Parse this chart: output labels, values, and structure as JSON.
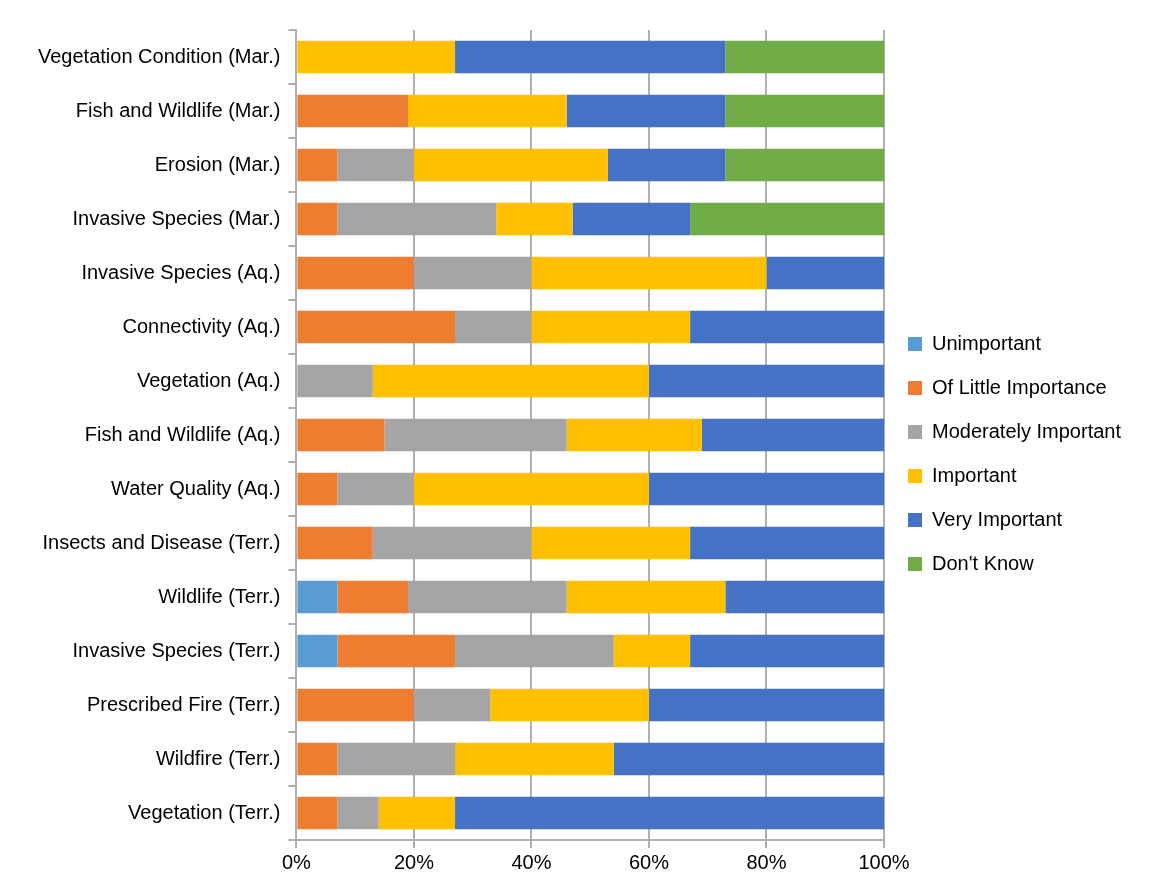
{
  "chart_data": {
    "type": "bar",
    "orientation": "horizontal",
    "stacked": true,
    "categories": [
      "Vegetation Condition (Mar.)",
      "Fish and Wildlife (Mar.)",
      "Erosion (Mar.)",
      "Invasive Species (Mar.)",
      "Invasive Species (Aq.)",
      "Connectivity (Aq.)",
      "Vegetation (Aq.)",
      "Fish and Wildlife (Aq.)",
      "Water Quality (Aq.)",
      "Insects and Disease (Terr.)",
      "Wildlife (Terr.)",
      "Invasive Species (Terr.)",
      "Prescribed Fire (Terr.)",
      "Wildfire (Terr.)",
      "Vegetation (Terr.)"
    ],
    "series": [
      {
        "name": "Unimportant",
        "color": "#5b9bd5",
        "values": [
          0,
          0,
          0,
          0,
          0,
          0,
          0,
          0,
          0,
          0,
          7,
          7,
          0,
          0,
          0
        ]
      },
      {
        "name": "Of Little Importance",
        "color": "#ed7d31",
        "values": [
          0,
          19,
          7,
          7,
          20,
          27,
          0,
          15,
          7,
          13,
          12,
          20,
          20,
          7,
          7
        ]
      },
      {
        "name": "Moderately Important",
        "color": "#a5a5a5",
        "values": [
          0,
          0,
          13,
          27,
          20,
          13,
          13,
          31,
          13,
          27,
          27,
          27,
          13,
          20,
          7
        ]
      },
      {
        "name": "Important",
        "color": "#ffc000",
        "values": [
          27,
          27,
          33,
          13,
          40,
          27,
          47,
          23,
          40,
          27,
          27,
          13,
          27,
          27,
          13
        ]
      },
      {
        "name": "Very Important",
        "color": "#4472c4",
        "values": [
          46,
          27,
          20,
          20,
          20,
          33,
          40,
          31,
          40,
          33,
          27,
          33,
          40,
          46,
          73
        ]
      },
      {
        "name": "Don't Know",
        "color": "#70ad47",
        "values": [
          27,
          27,
          27,
          33,
          0,
          0,
          0,
          0,
          0,
          0,
          0,
          0,
          0,
          0,
          0
        ]
      }
    ],
    "xlim": [
      0,
      100
    ],
    "xticks": [
      {
        "value": 0,
        "label": "0%"
      },
      {
        "value": 20,
        "label": "20%"
      },
      {
        "value": 40,
        "label": "40%"
      },
      {
        "value": 60,
        "label": "60%"
      },
      {
        "value": 80,
        "label": "80%"
      },
      {
        "value": 100,
        "label": "100%"
      }
    ],
    "grid": "x",
    "legend": "right"
  }
}
